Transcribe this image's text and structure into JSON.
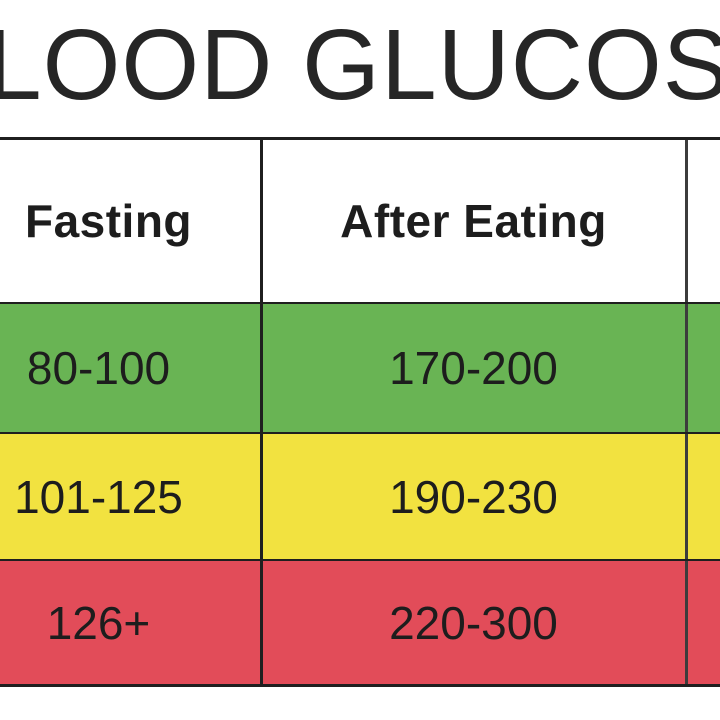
{
  "title": "LOOD GLUCOSE",
  "colors": {
    "normal": "#69b454",
    "elevated": "#f2e240",
    "high": "#e24c59",
    "text": "#1d1d1d",
    "rule": "#1f1f1f"
  },
  "table": {
    "headers": [
      "Fasting",
      "After Eating"
    ],
    "rows": [
      {
        "fasting": "80-100",
        "after_eating": "170-200",
        "color": "#69b454"
      },
      {
        "fasting": "101-125",
        "after_eating": "190-230",
        "color": "#f2e240"
      },
      {
        "fasting": "126+",
        "after_eating": "220-300",
        "color": "#e24c59"
      }
    ]
  }
}
